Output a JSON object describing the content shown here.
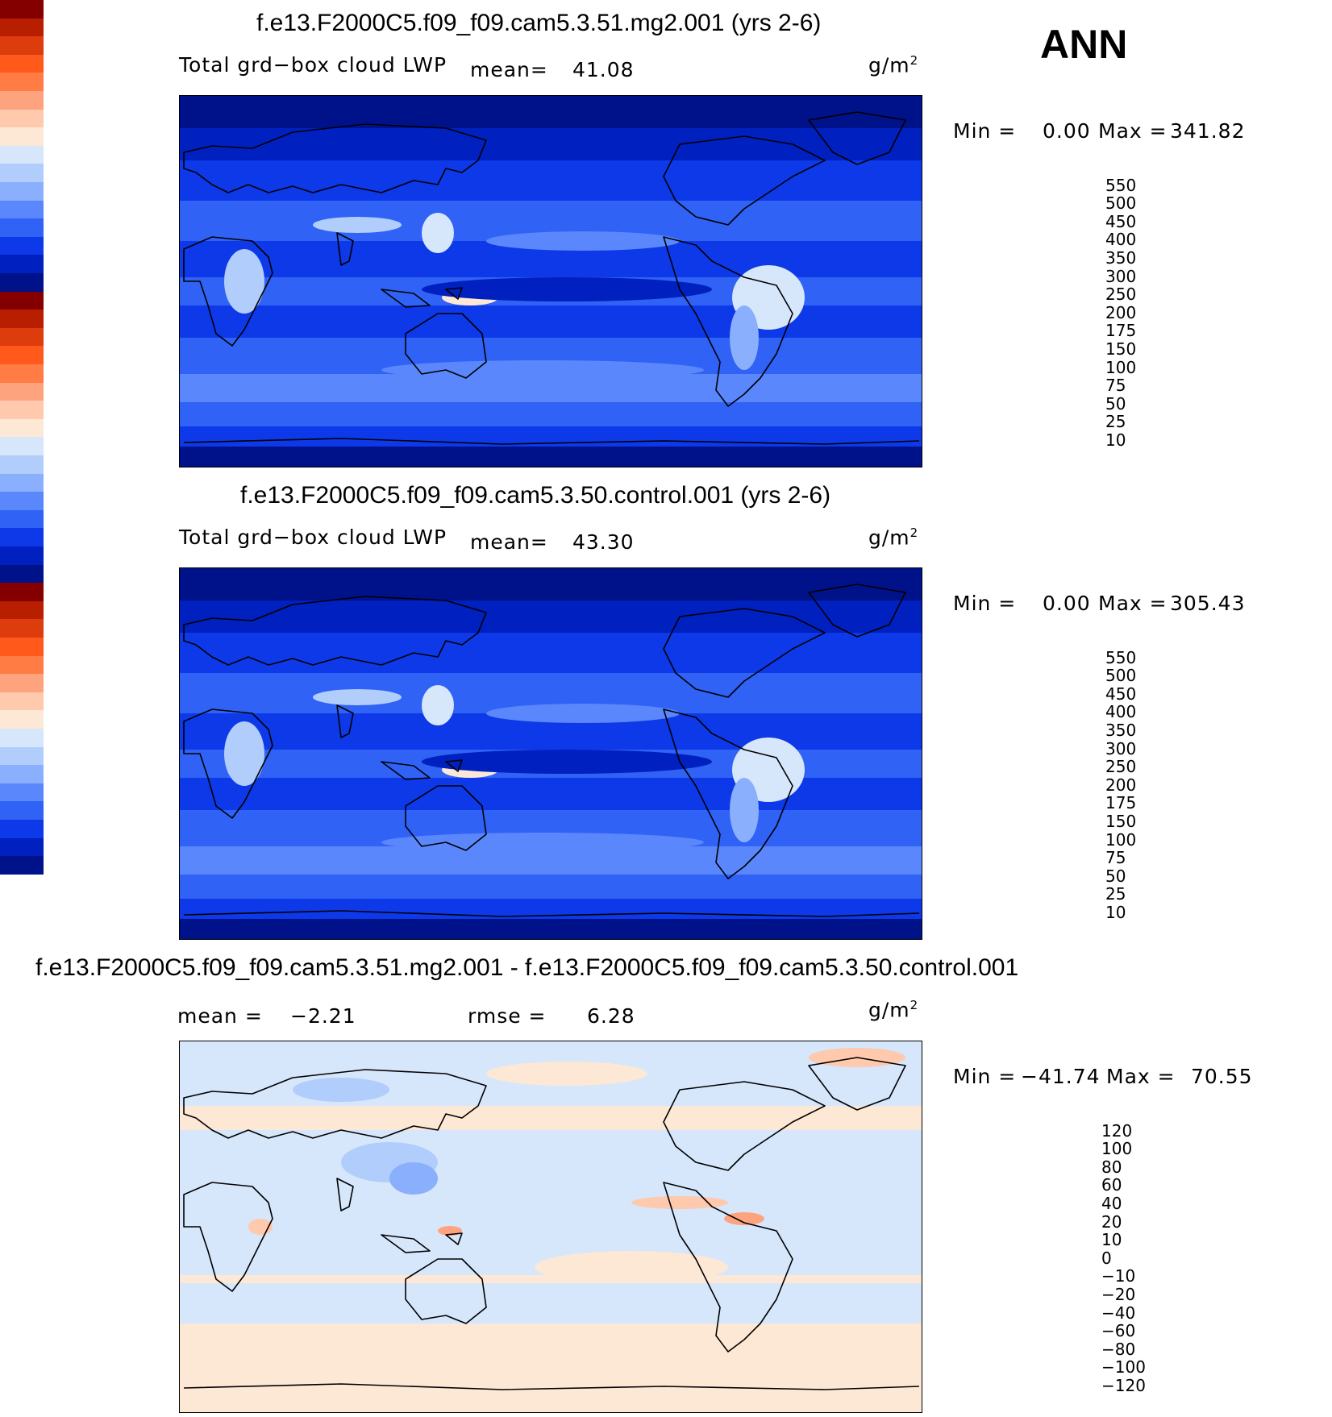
{
  "season": "ANN",
  "panels": [
    {
      "title": "f.e13.F2000C5.f09_f09.cam5.3.51.mg2.001 (yrs 2-6)",
      "left_label": "Total grd−box cloud LWP",
      "stat1_label": "mean=",
      "stat1_value": "41.08",
      "stat2_label": "",
      "stat2_value": "",
      "units_base": "g/m",
      "units_exp": "2",
      "min_label": "Min =",
      "min_value": "0.00",
      "max_label": "Max =",
      "max_value": "341.82",
      "colorbar": {
        "labels": [
          "550",
          "500",
          "450",
          "400",
          "350",
          "300",
          "250",
          "200",
          "175",
          "150",
          "100",
          "75",
          "50",
          "25",
          "10"
        ],
        "colors": [
          "#840000",
          "#b81e00",
          "#dd3c0d",
          "#ff5a1c",
          "#ff7c44",
          "#fda37e",
          "#fec9ad",
          "#fde8d6",
          "#d6e6fb",
          "#b0cdfb",
          "#89affd",
          "#5a87fb",
          "#2f62f5",
          "#0d39e8",
          "#0020bf",
          "#00128a"
        ]
      },
      "map_style": "lwp"
    },
    {
      "title": "f.e13.F2000C5.f09_f09.cam5.3.50.control.001 (yrs 2-6)",
      "left_label": "Total grd−box cloud LWP",
      "stat1_label": "mean=",
      "stat1_value": "43.30",
      "stat2_label": "",
      "stat2_value": "",
      "units_base": "g/m",
      "units_exp": "2",
      "min_label": "Min =",
      "min_value": "0.00",
      "max_label": "Max =",
      "max_value": "305.43",
      "colorbar": {
        "labels": [
          "550",
          "500",
          "450",
          "400",
          "350",
          "300",
          "250",
          "200",
          "175",
          "150",
          "100",
          "75",
          "50",
          "25",
          "10"
        ],
        "colors": [
          "#840000",
          "#b81e00",
          "#dd3c0d",
          "#ff5a1c",
          "#ff7c44",
          "#fda37e",
          "#fec9ad",
          "#fde8d6",
          "#d6e6fb",
          "#b0cdfb",
          "#89affd",
          "#5a87fb",
          "#2f62f5",
          "#0d39e8",
          "#0020bf",
          "#00128a"
        ]
      },
      "map_style": "lwp"
    },
    {
      "title": "f.e13.F2000C5.f09_f09.cam5.3.51.mg2.001 - f.e13.F2000C5.f09_f09.cam5.3.50.control.001",
      "left_label": "",
      "stat1_label": "mean =",
      "stat1_value": "−2.21",
      "stat2_label": "rmse =",
      "stat2_value": "6.28",
      "units_base": "g/m",
      "units_exp": "2",
      "min_label": "Min =",
      "min_value": "−41.74",
      "max_label": "Max =",
      "max_value": "70.55",
      "colorbar": {
        "labels": [
          "120",
          "100",
          "80",
          "60",
          "40",
          "20",
          "10",
          "0",
          "−10",
          "−20",
          "−40",
          "−60",
          "−80",
          "−100",
          "−120"
        ],
        "colors": [
          "#840000",
          "#b81e00",
          "#dd3c0d",
          "#ff5a1c",
          "#ff7c44",
          "#fda37e",
          "#fec9ad",
          "#fde8d6",
          "#d6e6fb",
          "#b0cdfb",
          "#89affd",
          "#5a87fb",
          "#2f62f5",
          "#0d39e8",
          "#0020bf",
          "#00128a"
        ]
      },
      "map_style": "diff"
    }
  ]
}
